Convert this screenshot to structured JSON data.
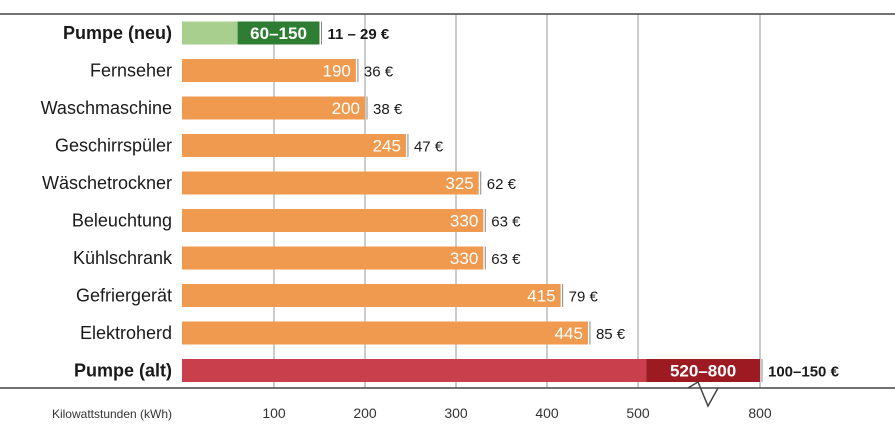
{
  "chart_data": {
    "type": "bar",
    "orientation": "horizontal",
    "xlabel": "Kilowattstunden (kWh)",
    "axis_break": "between 500 and 800",
    "xticks": [
      {
        "value": 100,
        "label": "100"
      },
      {
        "value": 200,
        "label": "200"
      },
      {
        "value": 300,
        "label": "300"
      },
      {
        "value": 400,
        "label": "400"
      },
      {
        "value": 500,
        "label": "500"
      },
      {
        "value": 800,
        "label": "800"
      }
    ],
    "grid": true,
    "bars": [
      {
        "category": "Pumpe (neu)",
        "min": 60,
        "max": 150,
        "value_label": "60–150",
        "cost_label": "11 – 29 €",
        "bold": true,
        "style": "green"
      },
      {
        "category": "Fernseher",
        "value": 190,
        "value_label": "190",
        "cost_label": "36 €",
        "bold": false,
        "style": "orange"
      },
      {
        "category": "Waschmaschine",
        "value": 200,
        "value_label": "200",
        "cost_label": "38 €",
        "bold": false,
        "style": "orange"
      },
      {
        "category": "Geschirrspüler",
        "value": 245,
        "value_label": "245",
        "cost_label": "47 €",
        "bold": false,
        "style": "orange"
      },
      {
        "category": "Wäschetrockner",
        "value": 325,
        "value_label": "325",
        "cost_label": "62 €",
        "bold": false,
        "style": "orange"
      },
      {
        "category": "Beleuchtung",
        "value": 330,
        "value_label": "330",
        "cost_label": "63 €",
        "bold": false,
        "style": "orange"
      },
      {
        "category": "Kühlschrank",
        "value": 330,
        "value_label": "330",
        "cost_label": "63 €",
        "bold": false,
        "style": "orange"
      },
      {
        "category": "Gefriergerät",
        "value": 415,
        "value_label": "415",
        "cost_label": "79 €",
        "bold": false,
        "style": "orange"
      },
      {
        "category": "Elektroherd",
        "value": 445,
        "value_label": "445",
        "cost_label": "85 €",
        "bold": false,
        "style": "orange"
      },
      {
        "category": "Pumpe (alt)",
        "min": 520,
        "max": 800,
        "value_label": "520–800",
        "cost_label": "100–150 €",
        "bold": true,
        "style": "red"
      }
    ],
    "colors": {
      "orange": "#ef9a4f",
      "green_light": "#a8cf8e",
      "green_dark": "#2e7d32",
      "red_light": "#c9404c",
      "red_dark": "#9e1a23",
      "grid": "#9a9a9a",
      "frame": "#444444"
    }
  }
}
